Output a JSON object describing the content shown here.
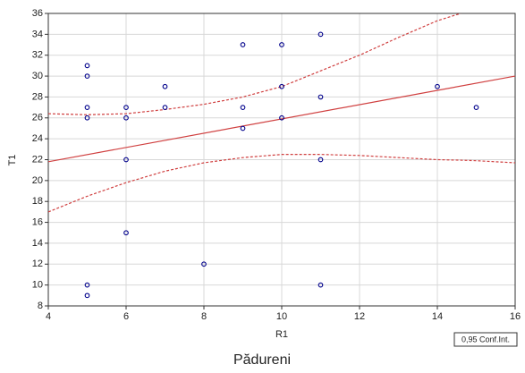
{
  "chart_data": {
    "type": "scatter",
    "title": "Pădureni",
    "x_label": "R1",
    "y_label": "T1",
    "xlim": [
      4,
      16
    ],
    "xticks": [
      4,
      6,
      8,
      10,
      12,
      14,
      16
    ],
    "ylim": [
      8,
      36
    ],
    "yticks": [
      8,
      10,
      12,
      14,
      16,
      18,
      20,
      22,
      24,
      26,
      28,
      30,
      32,
      34,
      36
    ],
    "grid": true,
    "points": {
      "color": "#00008b",
      "x": [
        5,
        5,
        5,
        5,
        5,
        5,
        6,
        6,
        6,
        6,
        7,
        7,
        8,
        9,
        9,
        9,
        10,
        10,
        10,
        11,
        11,
        11,
        11,
        14,
        15
      ],
      "y": [
        31,
        30,
        27,
        26,
        10,
        9,
        27,
        26,
        22,
        15,
        29,
        27,
        12,
        33,
        27,
        25,
        33,
        29,
        26,
        34,
        28,
        22,
        10,
        29,
        27
      ]
    },
    "fit": {
      "color": "#d04040",
      "x": [
        4,
        16
      ],
      "y": [
        21.8,
        30
      ]
    },
    "conf_band": {
      "name": "0,95 Conf.Int.",
      "color": "#d04040",
      "x": [
        4,
        5,
        6,
        7,
        8,
        9,
        10,
        11,
        12,
        13,
        14,
        14.6,
        15,
        16
      ],
      "upper": [
        26.4,
        26.3,
        26.4,
        26.8,
        27.3,
        28,
        29,
        30.5,
        32,
        33.7,
        35.3,
        36,
        null,
        null
      ],
      "lower": [
        17,
        18.5,
        19.8,
        20.9,
        21.7,
        22.2,
        22.5,
        22.5,
        22.4,
        22.2,
        22,
        21.95,
        21.9,
        21.7
      ]
    },
    "legend_position": "bottom-right"
  }
}
